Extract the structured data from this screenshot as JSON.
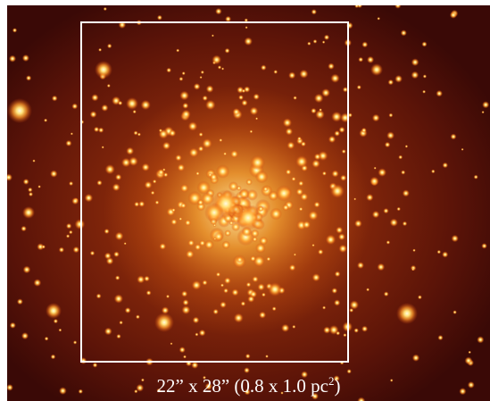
{
  "image": {
    "subject": "star-cluster",
    "colors": {
      "background": "#3a0906",
      "star_core": "#fff6c8",
      "star_glow": "#ff9a2a",
      "box": "#ffffff",
      "caption": "#ffffff"
    }
  },
  "caption": {
    "main": "22” x 28” (0.8 x 1.0 pc",
    "exponent": "2",
    "close": ")"
  }
}
